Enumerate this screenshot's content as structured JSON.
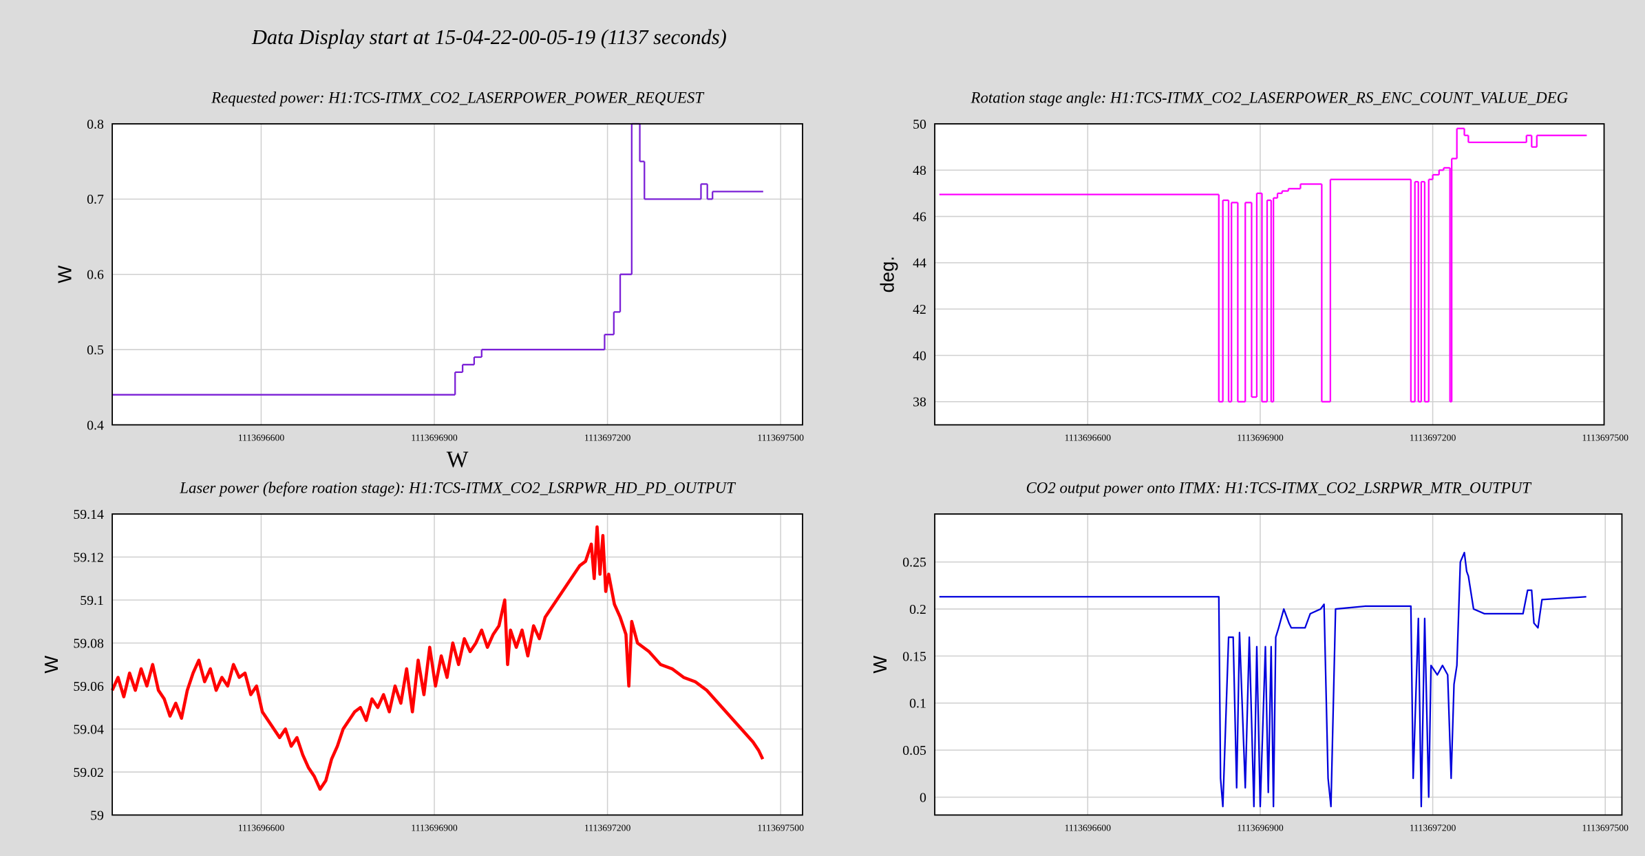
{
  "title": "Data Display start at 15-04-22-00-05-19 (1137 seconds)",
  "chart_data": [
    {
      "type": "line",
      "drawstyle": "steps-post",
      "title": "Requested power: H1:TCS-ITMX_CO2_LASERPOWER_POWER_REQUEST",
      "ylabel": "W",
      "xlabel": "W",
      "color": "#7a1fd6",
      "grid": true,
      "xlim": [
        1113696342,
        1113697538
      ],
      "ylim": [
        0.4,
        0.8
      ],
      "xticks": [
        1113696600,
        1113696900,
        1113697200,
        1113697500
      ],
      "yticks": [
        0.4,
        0.5,
        0.6,
        0.7,
        0.8
      ],
      "x": [
        1113696342,
        1113696936,
        1113696949,
        1113696969,
        1113696982,
        1113697195,
        1113697211,
        1113697222,
        1113697242,
        1113697256,
        1113697264,
        1113697362,
        1113697373,
        1113697382,
        1113697469
      ],
      "values": [
        0.44,
        0.47,
        0.48,
        0.49,
        0.5,
        0.52,
        0.55,
        0.6,
        0.8,
        0.75,
        0.7,
        0.72,
        0.7,
        0.71,
        0.71
      ]
    },
    {
      "type": "line",
      "drawstyle": "steps-post",
      "title": "Rotation stage angle: H1:TCS-ITMX_CO2_LASERPOWER_RS_ENC_COUNT_VALUE_DEG",
      "ylabel": "deg.",
      "color": "#ff00ff",
      "grid": true,
      "xlim": [
        1113696334,
        1113697498
      ],
      "ylim": [
        37,
        50
      ],
      "xticks": [
        1113696600,
        1113696900,
        1113697200,
        1113697500
      ],
      "yticks": [
        38,
        40,
        42,
        44,
        46,
        48,
        50
      ],
      "x": [
        1113696342,
        1113696828,
        1113696835,
        1113696845,
        1113696850,
        1113696861,
        1113696874,
        1113696885,
        1113696894,
        1113696903,
        1113696912,
        1113696919,
        1113696923,
        1113696930,
        1113696938,
        1113696949,
        1113696970,
        1113697007,
        1113697022,
        1113697162,
        1113697169,
        1113697175,
        1113697180,
        1113697186,
        1113697193,
        1113697200,
        1113697211,
        1113697219,
        1113697230,
        1113697233,
        1113697242,
        1113697255,
        1113697262,
        1113697363,
        1113697372,
        1113697381,
        1113697467
      ],
      "values": [
        46.95,
        38,
        46.7,
        38,
        46.6,
        38,
        46.6,
        38.2,
        47,
        38,
        46.7,
        38,
        46.8,
        47,
        47.1,
        47.2,
        47.4,
        38,
        47.6,
        38,
        47.5,
        38,
        47.5,
        38,
        47.6,
        47.8,
        48,
        48.1,
        38,
        48.5,
        49.8,
        49.5,
        49.2,
        49.5,
        49,
        49.5,
        49.5
      ]
    },
    {
      "type": "line",
      "title": "Laser power (before roation stage): H1:TCS-ITMX_CO2_LSRPWR_HD_PD_OUTPUT",
      "ylabel": "W",
      "color": "#ff0000",
      "grid": true,
      "xlim": [
        1113696342,
        1113697538
      ],
      "ylim": [
        59,
        59.14
      ],
      "xticks": [
        1113696600,
        1113696900,
        1113697200,
        1113697500
      ],
      "yticks": [
        59,
        59.02,
        59.04,
        59.06,
        59.08,
        59.1,
        59.12,
        59.14
      ],
      "x": [
        1113696342,
        1113696352,
        1113696362,
        1113696372,
        1113696382,
        1113696392,
        1113696402,
        1113696412,
        1113696422,
        1113696432,
        1113696442,
        1113696452,
        1113696462,
        1113696472,
        1113696482,
        1113696492,
        1113696502,
        1113696512,
        1113696522,
        1113696532,
        1113696542,
        1113696552,
        1113696562,
        1113696572,
        1113696582,
        1113696592,
        1113696602,
        1113696612,
        1113696622,
        1113696632,
        1113696642,
        1113696652,
        1113696662,
        1113696672,
        1113696682,
        1113696692,
        1113696702,
        1113696712,
        1113696722,
        1113696732,
        1113696742,
        1113696752,
        1113696762,
        1113696772,
        1113696782,
        1113696792,
        1113696802,
        1113696812,
        1113696822,
        1113696832,
        1113696842,
        1113696852,
        1113696862,
        1113696872,
        1113696882,
        1113696892,
        1113696902,
        1113696912,
        1113696922,
        1113696932,
        1113696942,
        1113696952,
        1113696962,
        1113696972,
        1113696982,
        1113696992,
        1113697002,
        1113697012,
        1113697022,
        1113697027,
        1113697032,
        1113697042,
        1113697052,
        1113697062,
        1113697072,
        1113697082,
        1113697092,
        1113697102,
        1113697112,
        1113697122,
        1113697132,
        1113697142,
        1113697152,
        1113697162,
        1113697172,
        1113697177,
        1113697182,
        1113697187,
        1113697192,
        1113697197,
        1113697202,
        1113697212,
        1113697222,
        1113697232,
        1113697237,
        1113697242,
        1113697252,
        1113697262,
        1113697272,
        1113697292,
        1113697312,
        1113697332,
        1113697352,
        1113697372,
        1113697392,
        1113697412,
        1113697432,
        1113697452,
        1113697462,
        1113697469
      ],
      "values": [
        59.058,
        59.064,
        59.055,
        59.066,
        59.058,
        59.068,
        59.06,
        59.07,
        59.058,
        59.054,
        59.046,
        59.052,
        59.045,
        59.058,
        59.066,
        59.072,
        59.062,
        59.068,
        59.058,
        59.064,
        59.06,
        59.07,
        59.064,
        59.066,
        59.056,
        59.06,
        59.048,
        59.044,
        59.04,
        59.036,
        59.04,
        59.032,
        59.036,
        59.028,
        59.022,
        59.018,
        59.012,
        59.016,
        59.026,
        59.032,
        59.04,
        59.044,
        59.048,
        59.05,
        59.044,
        59.054,
        59.05,
        59.056,
        59.048,
        59.06,
        59.052,
        59.068,
        59.048,
        59.072,
        59.056,
        59.078,
        59.06,
        59.074,
        59.064,
        59.08,
        59.07,
        59.082,
        59.076,
        59.08,
        59.086,
        59.078,
        59.084,
        59.088,
        59.1,
        59.07,
        59.086,
        59.078,
        59.086,
        59.074,
        59.088,
        59.082,
        59.092,
        59.096,
        59.1,
        59.104,
        59.108,
        59.112,
        59.116,
        59.118,
        59.126,
        59.11,
        59.134,
        59.112,
        59.13,
        59.104,
        59.112,
        59.098,
        59.092,
        59.084,
        59.06,
        59.09,
        59.08,
        59.078,
        59.076,
        59.07,
        59.068,
        59.064,
        59.062,
        59.058,
        59.052,
        59.046,
        59.04,
        59.034,
        59.03,
        59.026
      ]
    },
    {
      "type": "line",
      "title": "CO2 output power onto ITMX: H1:TCS-ITMX_CO2_LSRPWR_MTR_OUTPUT",
      "ylabel": "W",
      "color": "#0000dd",
      "grid": true,
      "xlim": [
        1113696334,
        1113697529
      ],
      "ylim": [
        -0.019,
        0.301
      ],
      "xticks": [
        1113696600,
        1113696900,
        1113697200,
        1113697500
      ],
      "yticks": [
        0,
        0.05,
        0.1,
        0.15,
        0.2,
        0.25
      ],
      "x": [
        1113696342,
        1113696828,
        1113696831,
        1113696835,
        1113696845,
        1113696853,
        1113696859,
        1113696864,
        1113696874,
        1113696881,
        1113696889,
        1113696894,
        1113696900,
        1113696909,
        1113696914,
        1113696919,
        1113696923,
        1113696927,
        1113696932,
        1113696941,
        1113696950,
        1113696954,
        1113696978,
        1113696987,
        1113697005,
        1113697011,
        1113697018,
        1113697023,
        1113697031,
        1113697082,
        1113697162,
        1113697166,
        1113697175,
        1113697180,
        1113697186,
        1113697193,
        1113697197,
        1113697208,
        1113697217,
        1113697226,
        1113697232,
        1113697237,
        1113697242,
        1113697248,
        1113697255,
        1113697259,
        1113697262,
        1113697271,
        1113697290,
        1113697357,
        1113697365,
        1113697372,
        1113697376,
        1113697383,
        1113697390,
        1113697467
      ],
      "values": [
        0.213,
        0.213,
        0.02,
        -0.01,
        0.17,
        0.17,
        0.01,
        0.175,
        0.01,
        0.17,
        -0.01,
        0.16,
        -0.01,
        0.16,
        0.005,
        0.16,
        -0.01,
        0.17,
        0.18,
        0.2,
        0.185,
        0.18,
        0.18,
        0.195,
        0.2,
        0.205,
        0.02,
        -0.01,
        0.2,
        0.203,
        0.203,
        0.02,
        0.19,
        -0.01,
        0.19,
        0,
        0.14,
        0.13,
        0.14,
        0.13,
        0.02,
        0.12,
        0.14,
        0.25,
        0.26,
        0.24,
        0.235,
        0.2,
        0.195,
        0.195,
        0.22,
        0.22,
        0.185,
        0.18,
        0.21,
        0.213
      ]
    }
  ]
}
